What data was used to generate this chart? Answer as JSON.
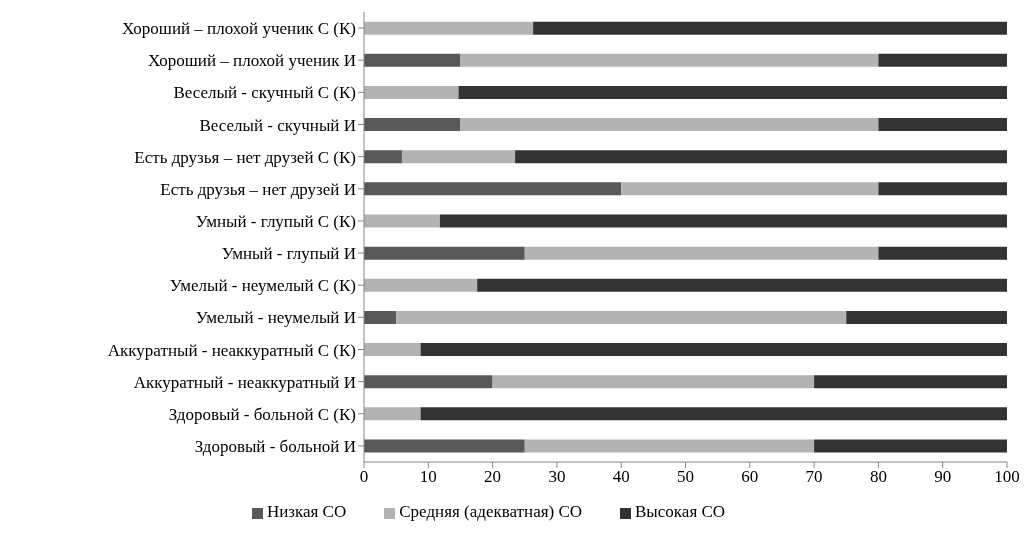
{
  "chart_data": {
    "type": "bar",
    "orientation": "horizontal",
    "stacked": true,
    "categories": [
      "Хороший  – плохой ученик С (К)",
      "Хороший  – плохой ученик И",
      "Веселый - скучный С (К)",
      "Веселый - скучный И",
      "Есть друзья – нет друзей С (К)",
      "Есть друзья – нет друзей И",
      "Умный - глупый С (К)",
      "Умный - глупый И",
      "Умелый - неумелый С (К)",
      "Умелый - неумелый И",
      "Аккуратный - неаккуратный С (К)",
      "Аккуратный - неаккуратный И",
      "Здоровый  - больной С (К)",
      "Здоровый  - больной И"
    ],
    "series": [
      {
        "name": "Низкая СО",
        "color": "#595959",
        "values": [
          0,
          15,
          0,
          15,
          5.9,
          40,
          0,
          25,
          0,
          5,
          0,
          20,
          0,
          25
        ]
      },
      {
        "name": "Средняя (адекватная) СО",
        "color": "#b3b3b3",
        "values": [
          26.3,
          65,
          14.7,
          65,
          17.6,
          40,
          11.8,
          55,
          17.6,
          70,
          8.8,
          50,
          8.8,
          45
        ]
      },
      {
        "name": "Высокая СО",
        "color": "#333333",
        "values": [
          73.7,
          20,
          85.3,
          20,
          76.5,
          20,
          88.2,
          20,
          82.4,
          25,
          91.2,
          30,
          91.2,
          30
        ]
      }
    ],
    "xlim": [
      0,
      100
    ],
    "xticks": [
      0,
      10,
      20,
      30,
      40,
      50,
      60,
      70,
      80,
      90,
      100
    ],
    "grid": false,
    "legend": "bottom"
  }
}
